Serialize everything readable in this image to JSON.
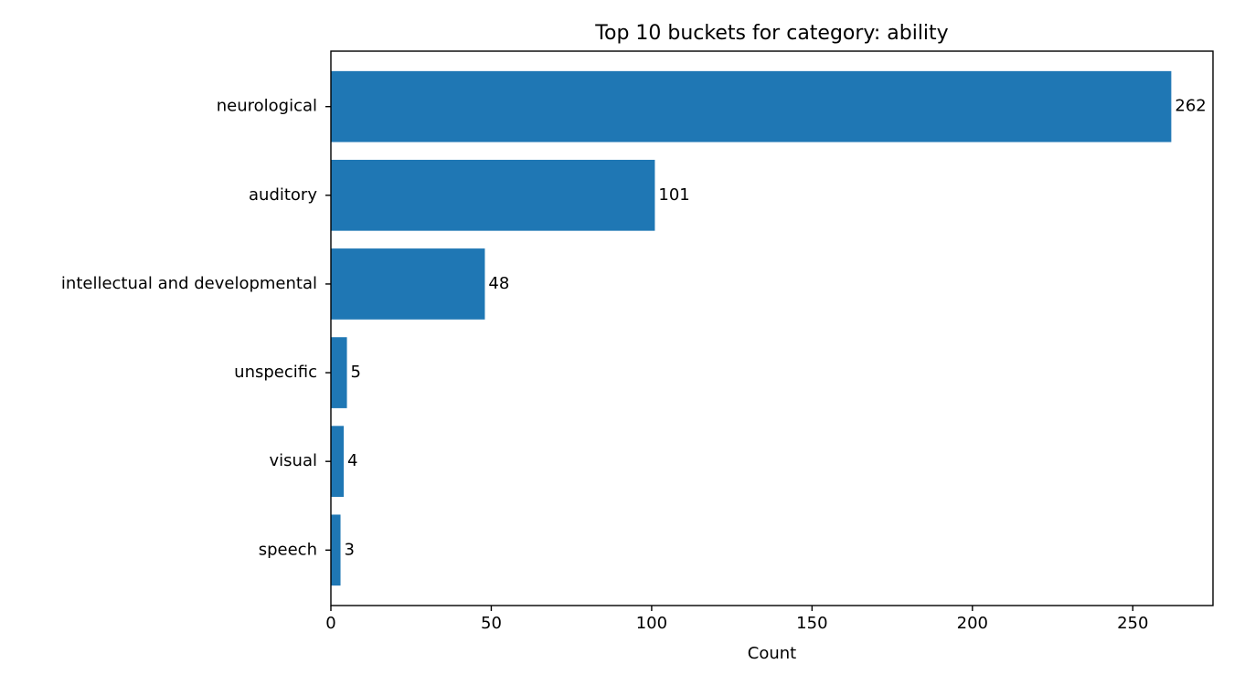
{
  "chart_data": {
    "type": "bar",
    "orientation": "horizontal",
    "title": "Top 10 buckets for category: ability",
    "xlabel": "Count",
    "ylabel": "",
    "categories": [
      "neurological",
      "auditory",
      "intellectual and developmental",
      "unspecific",
      "visual",
      "speech"
    ],
    "values": [
      262,
      101,
      48,
      5,
      4,
      3
    ],
    "data_labels": [
      "262",
      "101",
      "48",
      "5",
      "4",
      "3"
    ],
    "xlim": [
      0,
      275
    ],
    "xticks": [
      0,
      50,
      100,
      150,
      200,
      250
    ],
    "xtick_labels": [
      "0",
      "50",
      "100",
      "150",
      "200",
      "250"
    ],
    "grid": false,
    "legend": "none",
    "bar_color": "#1f77b4"
  }
}
